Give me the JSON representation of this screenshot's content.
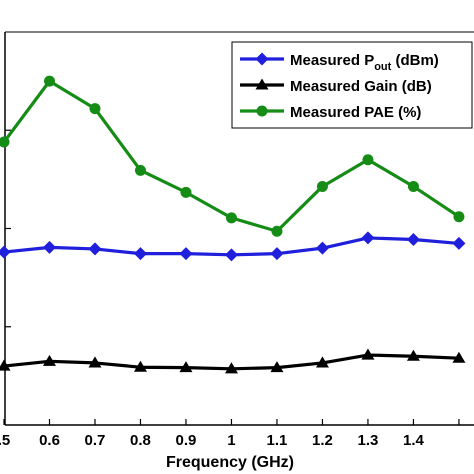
{
  "chart_data": {
    "type": "line",
    "title": "",
    "xlabel": "Frequency (GHz)",
    "ylabel": "",
    "xlim": [
      0.5,
      1.5
    ],
    "ylim": [
      0,
      100
    ],
    "x": [
      0.5,
      0.6,
      0.7,
      0.8,
      0.9,
      1.0,
      1.1,
      1.2,
      1.3,
      1.4,
      1.5
    ],
    "x_tick_labels": [
      ".5",
      "0.6",
      "0.7",
      "0.8",
      "0.9",
      "1",
      "1.1",
      "1.2",
      "1.3",
      "1.4",
      ""
    ],
    "y_ticks": [
      25,
      50,
      75
    ],
    "grid": false,
    "legend_position": "top-right",
    "series": [
      {
        "name_main": "Measured P",
        "name_sub": "out",
        "name_tail": " (dBm)",
        "color": "#1f1fdc",
        "marker": "diamond",
        "values": [
          44,
          45.2,
          44.8,
          43.6,
          43.6,
          43.3,
          43.6,
          45,
          47.6,
          47.2,
          46.2
        ]
      },
      {
        "name": "Measured Gain (dB)",
        "color": "#000000",
        "marker": "triangle",
        "values": [
          15,
          16.2,
          15.8,
          14.7,
          14.6,
          14.3,
          14.6,
          15.8,
          17.8,
          17.5,
          17
        ]
      },
      {
        "name": "Measured PAE (%)",
        "color": "#158c15",
        "marker": "circle",
        "values": [
          72,
          87.5,
          80.5,
          64.8,
          59.2,
          52.7,
          49.3,
          60.7,
          67.5,
          60.7,
          53
        ]
      }
    ]
  }
}
